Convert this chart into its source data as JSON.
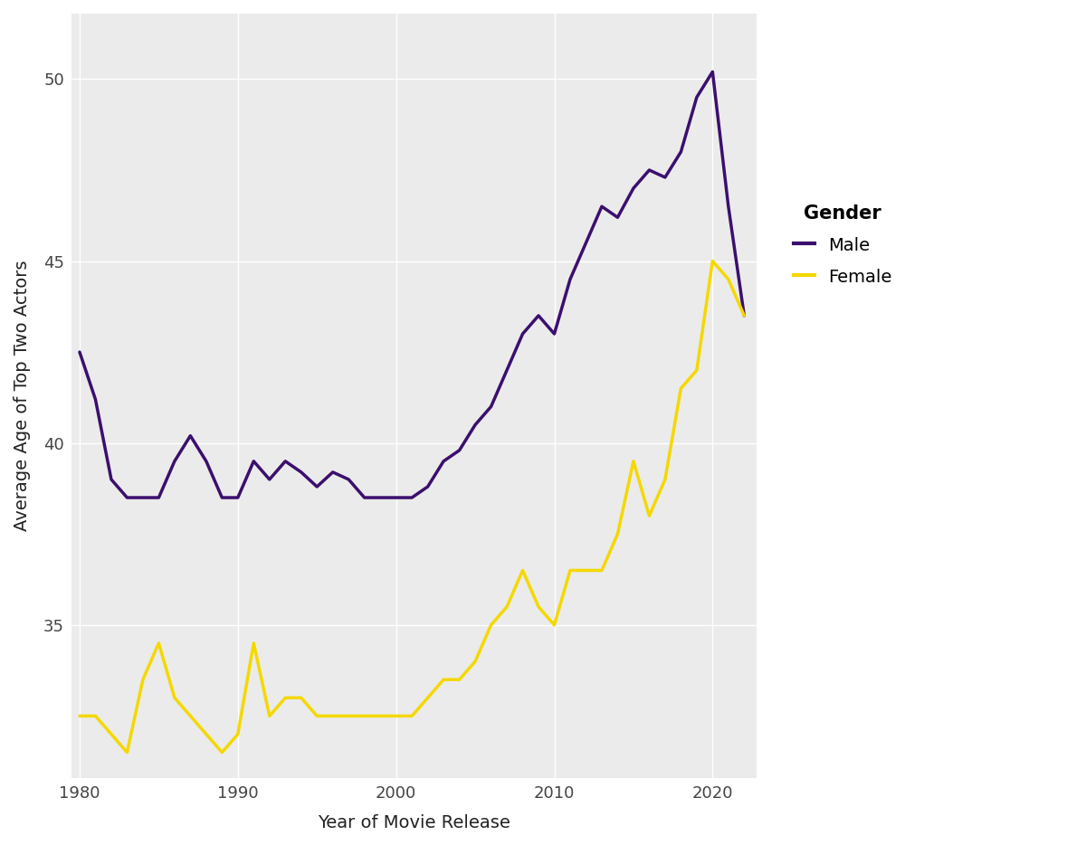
{
  "years_male": [
    1980,
    1981,
    1982,
    1983,
    1984,
    1985,
    1986,
    1987,
    1988,
    1989,
    1990,
    1991,
    1992,
    1993,
    1994,
    1995,
    1996,
    1997,
    1998,
    1999,
    2000,
    2001,
    2002,
    2003,
    2004,
    2005,
    2006,
    2007,
    2008,
    2009,
    2010,
    2011,
    2012,
    2013,
    2014,
    2015,
    2016,
    2017,
    2018,
    2019,
    2020,
    2021,
    2022
  ],
  "values_male": [
    42.5,
    41.2,
    39.0,
    38.5,
    38.5,
    38.5,
    39.5,
    40.2,
    39.5,
    38.5,
    38.5,
    39.5,
    39.0,
    39.5,
    39.2,
    38.8,
    39.2,
    39.0,
    38.5,
    38.5,
    38.5,
    38.5,
    38.8,
    39.5,
    39.8,
    40.5,
    41.0,
    42.0,
    43.0,
    43.5,
    43.0,
    44.5,
    45.5,
    46.5,
    46.2,
    47.0,
    47.5,
    47.3,
    48.0,
    49.5,
    50.2,
    46.5,
    43.5
  ],
  "years_female": [
    1980,
    1981,
    1982,
    1983,
    1984,
    1985,
    1986,
    1987,
    1988,
    1989,
    1990,
    1991,
    1992,
    1993,
    1994,
    1995,
    1996,
    1997,
    1998,
    1999,
    2000,
    2001,
    2002,
    2003,
    2004,
    2005,
    2006,
    2007,
    2008,
    2009,
    2010,
    2011,
    2012,
    2013,
    2014,
    2015,
    2016,
    2017,
    2018,
    2019,
    2020,
    2021,
    2022
  ],
  "values_female": [
    32.5,
    32.5,
    32.0,
    31.5,
    33.5,
    34.5,
    33.0,
    32.5,
    32.0,
    31.5,
    32.0,
    34.5,
    32.5,
    33.0,
    33.0,
    32.5,
    32.5,
    32.5,
    32.5,
    32.5,
    32.5,
    32.5,
    33.0,
    33.5,
    33.5,
    34.0,
    35.0,
    35.5,
    36.5,
    35.5,
    35.0,
    36.5,
    36.5,
    36.5,
    37.5,
    39.5,
    38.0,
    39.0,
    41.5,
    42.0,
    45.0,
    44.5,
    43.5
  ],
  "male_color": "#3B0F6E",
  "female_color": "#F5D800",
  "xlabel": "Year of Movie Release",
  "ylabel": "Average Age of Top Two Actors",
  "legend_title": "Gender",
  "legend_male": "Male",
  "legend_female": "Female",
  "xlim": [
    1979.5,
    2022.8
  ],
  "ylim": [
    30.8,
    51.8
  ],
  "xticks": [
    1980,
    1990,
    2000,
    2010,
    2020
  ],
  "yticks": [
    35,
    40,
    45,
    50
  ],
  "bg_color": "#EBEBEB",
  "grid_color": "#FFFFFF",
  "line_width": 2.5,
  "label_fontsize": 14,
  "tick_fontsize": 13,
  "legend_fontsize": 14,
  "legend_title_fontsize": 15
}
